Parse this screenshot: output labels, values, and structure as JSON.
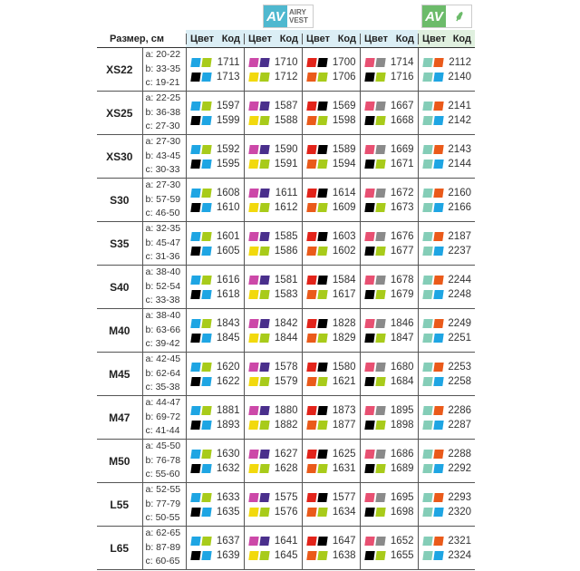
{
  "logos": [
    {
      "mark": "AV",
      "text": [
        "AIRY",
        "VEST"
      ],
      "color": "#4fb8cf"
    },
    {
      "mark": "AV",
      "text": [
        "",
        ""
      ],
      "color": "#6cbb6a"
    }
  ],
  "header": {
    "size": "Размер, см",
    "color": "Цвет",
    "code": "Код"
  },
  "colors": {
    "blue": "#1ea5e3",
    "lime": "#a8cb1a",
    "black": "#000000",
    "magenta": "#cc48a8",
    "purple": "#4a2f8c",
    "yellow": "#f2d90d",
    "red": "#e2231a",
    "orange": "#ea5a1a",
    "pink": "#e85072",
    "gray": "#8a8a8a",
    "teal": "#84cdb7"
  },
  "group_swatches": [
    [
      [
        "blue",
        "lime"
      ],
      [
        "black",
        "blue"
      ]
    ],
    [
      [
        "magenta",
        "purple"
      ],
      [
        "yellow",
        "lime"
      ]
    ],
    [
      [
        "red",
        "black"
      ],
      [
        "orange",
        "lime"
      ]
    ],
    [
      [
        "pink",
        "gray"
      ],
      [
        "black",
        "lime"
      ]
    ],
    [
      [
        "teal",
        "orange"
      ],
      [
        "teal",
        "blue"
      ]
    ]
  ],
  "rows": [
    {
      "size": "XS22",
      "dims": [
        "a: 20-22",
        "b: 33-35",
        "c: 19-21"
      ],
      "codes": [
        [
          "1711",
          "1713"
        ],
        [
          "1710",
          "1712"
        ],
        [
          "1700",
          "1706"
        ],
        [
          "1714",
          "1716"
        ],
        [
          "2112",
          "2140"
        ]
      ]
    },
    {
      "size": "XS25",
      "dims": [
        "a: 22-25",
        "b: 36-38",
        "c: 27-30"
      ],
      "codes": [
        [
          "1597",
          "1599"
        ],
        [
          "1587",
          "1588"
        ],
        [
          "1569",
          "1598"
        ],
        [
          "1667",
          "1668"
        ],
        [
          "2141",
          "2142"
        ]
      ]
    },
    {
      "size": "XS30",
      "dims": [
        "a: 27-30",
        "b: 43-45",
        "c: 30-33"
      ],
      "codes": [
        [
          "1592",
          "1595"
        ],
        [
          "1590",
          "1591"
        ],
        [
          "1589",
          "1594"
        ],
        [
          "1669",
          "1671"
        ],
        [
          "2143",
          "2144"
        ]
      ]
    },
    {
      "size": "S30",
      "dims": [
        "a: 27-30",
        "b: 57-59",
        "c: 46-50"
      ],
      "codes": [
        [
          "1608",
          "1610"
        ],
        [
          "1611",
          "1612"
        ],
        [
          "1614",
          "1609"
        ],
        [
          "1672",
          "1673"
        ],
        [
          "2160",
          "2166"
        ]
      ]
    },
    {
      "size": "S35",
      "dims": [
        "a: 32-35",
        "b: 45-47",
        "c: 31-36"
      ],
      "codes": [
        [
          "1601",
          "1605"
        ],
        [
          "1585",
          "1586"
        ],
        [
          "1603",
          "1602"
        ],
        [
          "1676",
          "1677"
        ],
        [
          "2187",
          "2237"
        ]
      ]
    },
    {
      "size": "S40",
      "dims": [
        "a: 38-40",
        "b: 52-54",
        "c: 33-38"
      ],
      "codes": [
        [
          "1616",
          "1618"
        ],
        [
          "1581",
          "1583"
        ],
        [
          "1584",
          "1617"
        ],
        [
          "1678",
          "1679"
        ],
        [
          "2244",
          "2248"
        ]
      ]
    },
    {
      "size": "M40",
      "dims": [
        "a: 38-40",
        "b: 63-66",
        "c: 39-42"
      ],
      "codes": [
        [
          "1843",
          "1845"
        ],
        [
          "1842",
          "1844"
        ],
        [
          "1828",
          "1829"
        ],
        [
          "1846",
          "1847"
        ],
        [
          "2249",
          "2251"
        ]
      ]
    },
    {
      "size": "M45",
      "dims": [
        "a: 42-45",
        "b: 62-64",
        "c: 35-38"
      ],
      "codes": [
        [
          "1620",
          "1622"
        ],
        [
          "1578",
          "1579"
        ],
        [
          "1580",
          "1621"
        ],
        [
          "1680",
          "1684"
        ],
        [
          "2253",
          "2258"
        ]
      ]
    },
    {
      "size": "M47",
      "dims": [
        "a: 44-47",
        "b: 69-72",
        "c: 41-44"
      ],
      "codes": [
        [
          "1881",
          "1893"
        ],
        [
          "1880",
          "1882"
        ],
        [
          "1873",
          "1877"
        ],
        [
          "1895",
          "1898"
        ],
        [
          "2286",
          "2287"
        ]
      ]
    },
    {
      "size": "M50",
      "dims": [
        "a: 45-50",
        "b: 76-78",
        "c: 55-60"
      ],
      "codes": [
        [
          "1630",
          "1632"
        ],
        [
          "1627",
          "1628"
        ],
        [
          "1625",
          "1631"
        ],
        [
          "1686",
          "1689"
        ],
        [
          "2288",
          "2292"
        ]
      ]
    },
    {
      "size": "L55",
      "dims": [
        "a: 52-55",
        "b: 77-79",
        "c: 50-55"
      ],
      "codes": [
        [
          "1633",
          "1635"
        ],
        [
          "1575",
          "1576"
        ],
        [
          "1577",
          "1634"
        ],
        [
          "1695",
          "1698"
        ],
        [
          "2293",
          "2320"
        ]
      ]
    },
    {
      "size": "L65",
      "dims": [
        "a: 62-65",
        "b: 87-89",
        "c: 60-65"
      ],
      "codes": [
        [
          "1637",
          "1639"
        ],
        [
          "1641",
          "1645"
        ],
        [
          "1647",
          "1638"
        ],
        [
          "1652",
          "1655"
        ],
        [
          "2321",
          "2324"
        ]
      ]
    }
  ]
}
